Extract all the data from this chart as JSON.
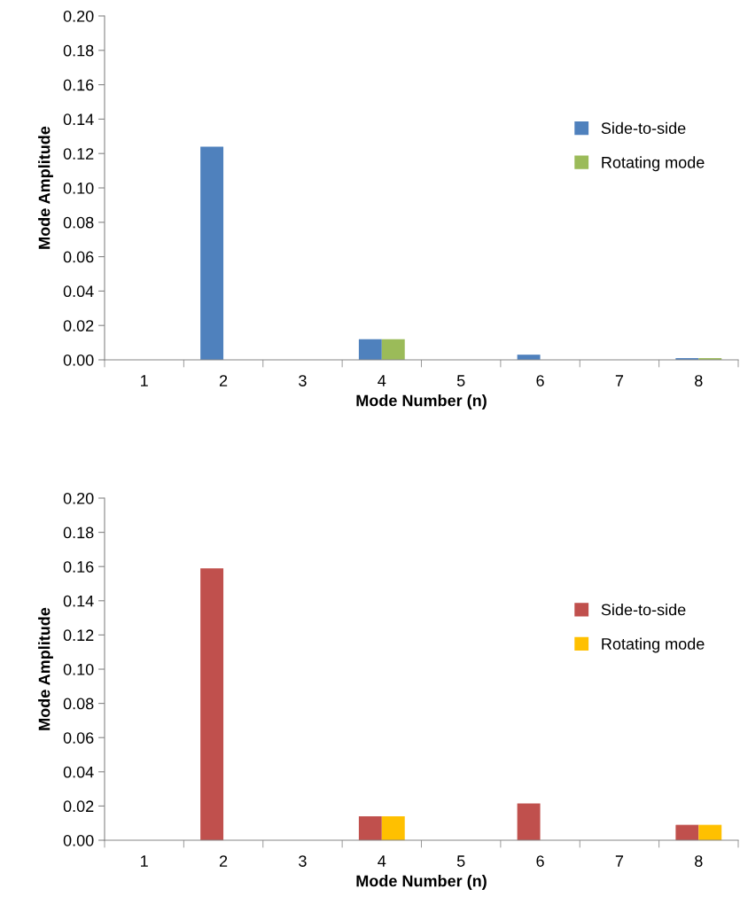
{
  "chart_data": [
    {
      "type": "bar",
      "xlabel": "Mode Number (n)",
      "ylabel": "Mode Amplitude",
      "categories": [
        "1",
        "2",
        "3",
        "4",
        "5",
        "6",
        "7",
        "8"
      ],
      "series": [
        {
          "name": "Side-to-side",
          "color": "#4f81bd",
          "values": [
            null,
            0.124,
            null,
            0.012,
            null,
            0.003,
            null,
            0.001
          ]
        },
        {
          "name": "Rotating mode",
          "color": "#9bbb59",
          "values": [
            null,
            null,
            null,
            0.012,
            null,
            null,
            null,
            0.001
          ]
        }
      ],
      "ylim": [
        0,
        0.2
      ],
      "yticks": [
        {
          "value": 0,
          "label": "0.00"
        },
        {
          "value": 0.02,
          "label": "0.02"
        },
        {
          "value": 0.04,
          "label": "0.04"
        },
        {
          "value": 0.06,
          "label": "0.06"
        },
        {
          "value": 0.08,
          "label": "0.08"
        },
        {
          "value": 0.1,
          "label": "0.10"
        },
        {
          "value": 0.12,
          "label": "0.12"
        },
        {
          "value": 0.14,
          "label": "0.14"
        },
        {
          "value": 0.16,
          "label": "0.16"
        },
        {
          "value": 0.18,
          "label": "0.18"
        },
        {
          "value": 0.2,
          "label": "0.20"
        }
      ],
      "grid": false,
      "legend": "right"
    },
    {
      "type": "bar",
      "xlabel": "Mode Number (n)",
      "ylabel": "Mode Amplitude",
      "categories": [
        "1",
        "2",
        "3",
        "4",
        "5",
        "6",
        "7",
        "8"
      ],
      "series": [
        {
          "name": "Side-to-side",
          "color": "#c0504d",
          "values": [
            null,
            0.159,
            null,
            0.014,
            null,
            0.0215,
            null,
            0.009
          ]
        },
        {
          "name": "Rotating mode",
          "color": "#ffc000",
          "values": [
            null,
            null,
            null,
            0.014,
            null,
            null,
            null,
            0.009
          ]
        }
      ],
      "ylim": [
        0,
        0.2
      ],
      "yticks": [
        {
          "value": 0,
          "label": "0.00"
        },
        {
          "value": 0.02,
          "label": "0.02"
        },
        {
          "value": 0.04,
          "label": "0.04"
        },
        {
          "value": 0.06,
          "label": "0.06"
        },
        {
          "value": 0.08,
          "label": "0.08"
        },
        {
          "value": 0.1,
          "label": "0.10"
        },
        {
          "value": 0.12,
          "label": "0.12"
        },
        {
          "value": 0.14,
          "label": "0.14"
        },
        {
          "value": 0.16,
          "label": "0.16"
        },
        {
          "value": 0.18,
          "label": "0.18"
        },
        {
          "value": 0.2,
          "label": "0.20"
        }
      ],
      "grid": false,
      "legend": "right"
    }
  ]
}
